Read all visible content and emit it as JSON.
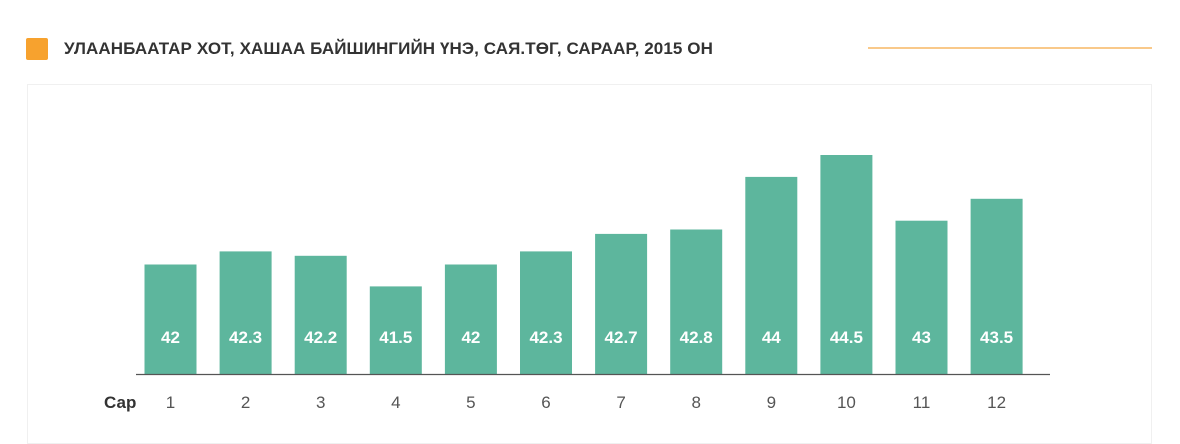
{
  "header": {
    "title": "УЛААНБААТАР ХОТ, ХАШАА БАЙШИНГИЙН ҮНЭ, САЯ.ТӨГ, САРААР, 2015 ОН",
    "marker_color": "#f7a22e",
    "rule_color": "#f9c98a"
  },
  "chart_data": {
    "type": "bar",
    "title": "УЛААНБААТАР ХОТ, ХАШАА БАЙШИНГИЙН ҮНЭ, САЯ.ТӨГ, САРААР, 2015 ОН",
    "xlabel": "Сар",
    "ylabel": "",
    "categories": [
      "1",
      "2",
      "3",
      "4",
      "5",
      "6",
      "7",
      "8",
      "9",
      "10",
      "11",
      "12"
    ],
    "values": [
      42,
      42.3,
      42.2,
      41.5,
      42,
      42.3,
      42.7,
      42.8,
      44,
      44.5,
      43,
      43.5
    ],
    "data_labels": [
      "42",
      "42.3",
      "42.2",
      "41.5",
      "42",
      "42.3",
      "42.7",
      "42.8",
      "44",
      "44.5",
      "43",
      "43.5"
    ],
    "ylim": [
      39.5,
      45.3
    ],
    "grid": false,
    "bar_color": "#5db69d",
    "axis_color": "#555555"
  }
}
